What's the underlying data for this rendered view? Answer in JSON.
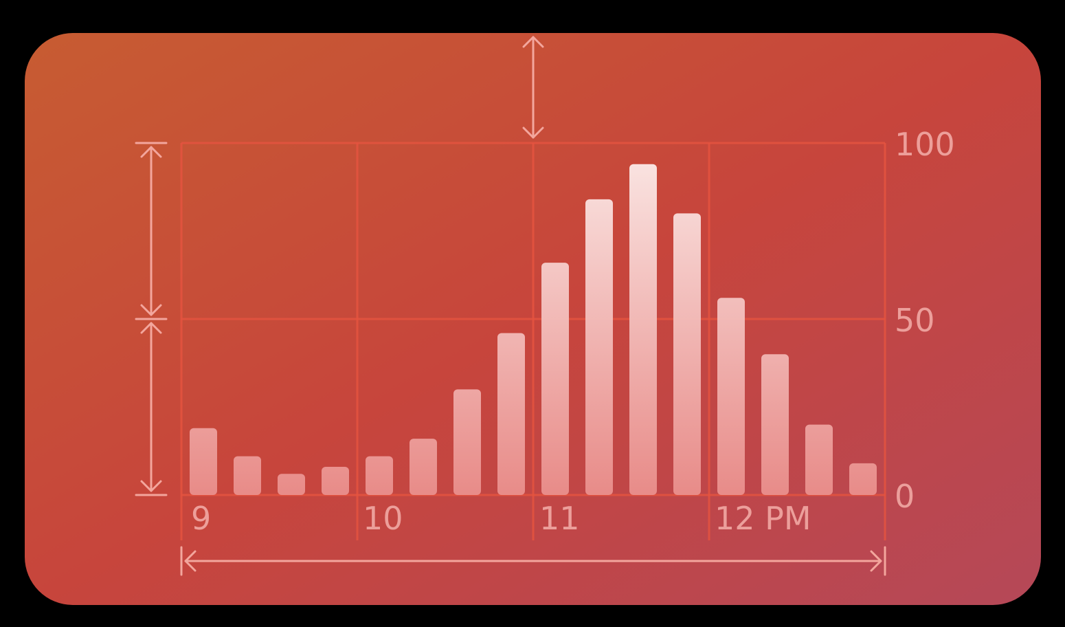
{
  "colors": {
    "background": "#000000",
    "card_gradient_start": "#c75c32",
    "card_gradient_mid": "#c7453c",
    "card_gradient_end": "#b54858",
    "gridline": "#e4533f",
    "bar_top": "#fbe7e5",
    "bar_bottom": "#ea8f8c",
    "annotation": "#f3a69d",
    "tick_text": "#f1a9a4"
  },
  "chart_data": {
    "type": "bar",
    "title": "",
    "xlabel": "",
    "ylabel": "",
    "x_tick_labels": [
      "9",
      "10",
      "11",
      "12 PM"
    ],
    "y_tick_labels": [
      "100",
      "50",
      "0"
    ],
    "y_ticks": [
      100,
      50,
      0
    ],
    "ylim": [
      0,
      100
    ],
    "y_axis_position": "right",
    "grid": true,
    "bars_per_hour": 4,
    "hours": 4,
    "values": [
      19,
      11,
      6,
      8,
      11,
      16,
      30,
      46,
      66,
      84,
      94,
      80,
      56,
      40,
      20,
      9
    ]
  }
}
